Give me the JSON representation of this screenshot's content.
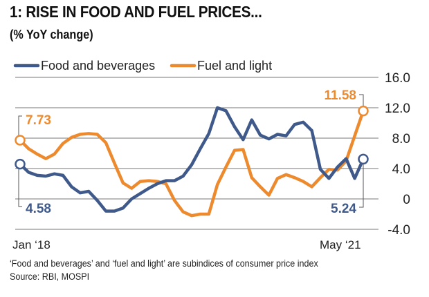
{
  "title": "1: RISE IN FOOD AND FUEL PRICES...",
  "subtitle": "(% YoY change)",
  "footnote": "‘Food and beverages’ and ‘fuel and light’ are subindices of consumer price index",
  "source": "Source: RBI, MOSPI",
  "chart_data": {
    "type": "line",
    "x_start_label": "Jan ‘18",
    "x_end_label": "May ‘21",
    "x": [
      "2018-01",
      "2018-02",
      "2018-03",
      "2018-04",
      "2018-05",
      "2018-06",
      "2018-07",
      "2018-08",
      "2018-09",
      "2018-10",
      "2018-11",
      "2018-12",
      "2019-01",
      "2019-02",
      "2019-03",
      "2019-04",
      "2019-05",
      "2019-06",
      "2019-07",
      "2019-08",
      "2019-09",
      "2019-10",
      "2019-11",
      "2019-12",
      "2020-01",
      "2020-02",
      "2020-03",
      "2020-04",
      "2020-05",
      "2020-06",
      "2020-07",
      "2020-08",
      "2020-09",
      "2020-10",
      "2020-11",
      "2020-12",
      "2021-01",
      "2021-02",
      "2021-03",
      "2021-04",
      "2021-05"
    ],
    "ylim": [
      -4,
      16
    ],
    "yticks": [
      "16.0",
      "12.0",
      "8.0",
      "4.0",
      "0",
      "-4.0"
    ],
    "ytick_values": [
      16,
      12,
      8,
      4,
      0,
      -4
    ],
    "grid": true,
    "legend": "top-left",
    "series": [
      {
        "name": "Food and beverages",
        "color": "#3f5a8a",
        "values": [
          4.58,
          3.5,
          3.1,
          3.0,
          3.3,
          3.1,
          1.6,
          0.8,
          1.0,
          -0.2,
          -1.6,
          -1.6,
          -1.2,
          0,
          0.7,
          1.4,
          2.0,
          2.4,
          2.4,
          3.0,
          4.5,
          6.6,
          8.6,
          12.0,
          11.6,
          9.5,
          7.8,
          10.4,
          8.4,
          7.9,
          8.5,
          8.3,
          9.8,
          10.1,
          9.0,
          3.9,
          2.7,
          4.2,
          5.3,
          2.7,
          5.24
        ],
        "start_label": "4.58",
        "end_label": "5.24"
      },
      {
        "name": "Fuel and light",
        "color": "#ee8a2e",
        "values": [
          7.73,
          6.6,
          5.9,
          5.3,
          5.9,
          7.3,
          8.1,
          8.5,
          8.6,
          8.5,
          7.4,
          4.7,
          2.1,
          1.4,
          2.3,
          2.4,
          2.3,
          2.0,
          -0.2,
          -1.7,
          -2.2,
          -2.0,
          -2.0,
          1.9,
          4.2,
          6.4,
          6.5,
          2.8,
          1.6,
          0.5,
          2.7,
          3.2,
          2.8,
          2.3,
          1.6,
          2.8,
          3.9,
          3.8,
          5.0,
          8.3,
          11.58
        ],
        "start_label": "7.73",
        "end_label": "11.58"
      }
    ]
  }
}
